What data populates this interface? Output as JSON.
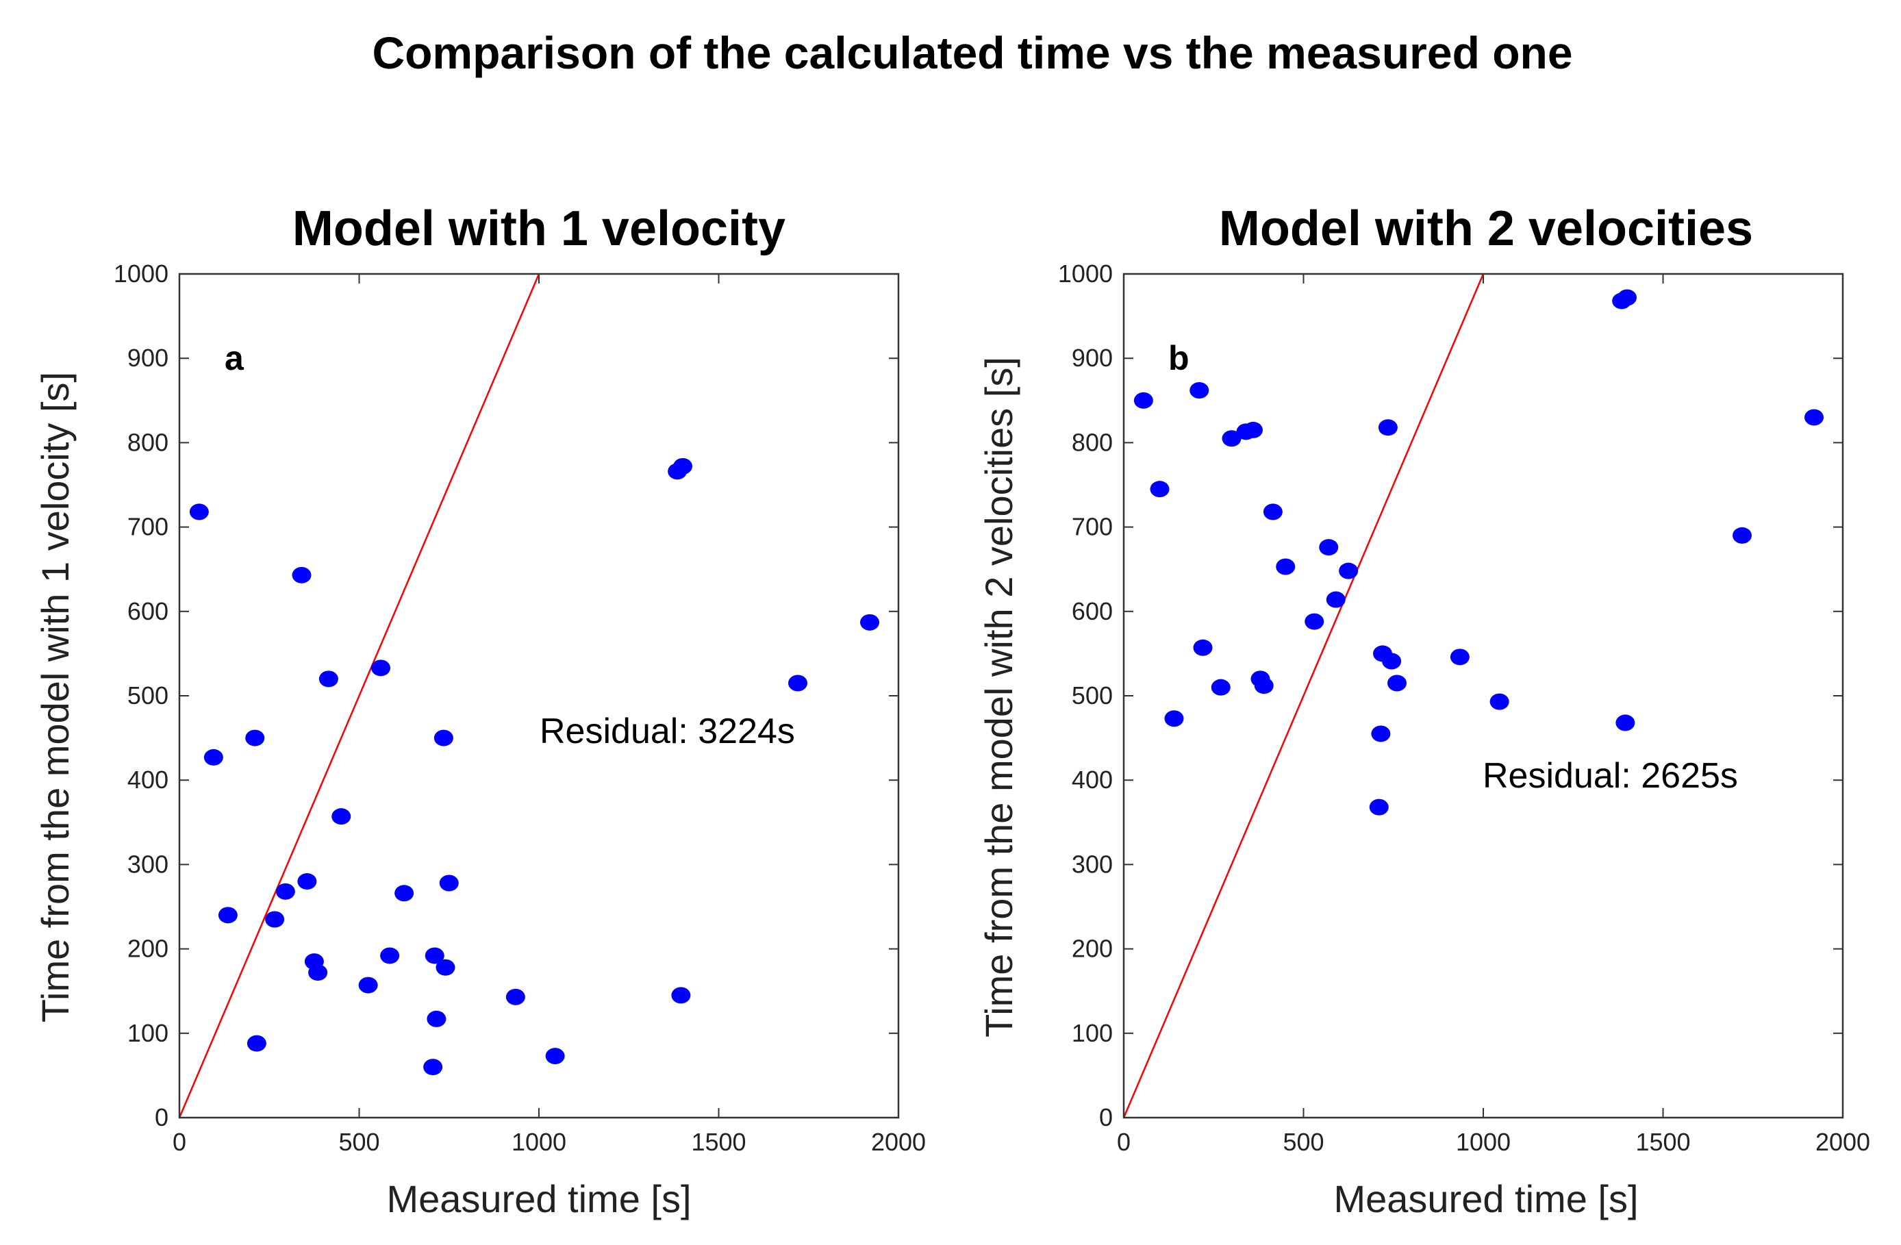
{
  "figure": {
    "title": "Comparison of the calculated time vs the measured one"
  },
  "chart_data": [
    {
      "type": "scatter",
      "title": "Model with 1 velocity",
      "panel_label": "a",
      "xlabel": "Measured time [s]",
      "ylabel": "Time from the model with 1 velocity [s]",
      "xlim": [
        0,
        2000
      ],
      "ylim": [
        0,
        1000
      ],
      "xticks": [
        0,
        500,
        1000,
        1500,
        2000
      ],
      "yticks": [
        0,
        100,
        200,
        300,
        400,
        500,
        600,
        700,
        800,
        900,
        1000
      ],
      "grid": false,
      "annotation": "Residual: 3224s",
      "reference_line": {
        "from": [
          0,
          0
        ],
        "to": [
          1000,
          1000
        ],
        "color": "#ff0000"
      },
      "marker_color": "#0000ff",
      "points": [
        [
          55,
          718
        ],
        [
          95,
          427
        ],
        [
          135,
          240
        ],
        [
          210,
          450
        ],
        [
          215,
          88
        ],
        [
          265,
          235
        ],
        [
          295,
          268
        ],
        [
          340,
          643
        ],
        [
          355,
          280
        ],
        [
          375,
          185
        ],
        [
          385,
          172
        ],
        [
          415,
          520
        ],
        [
          450,
          357
        ],
        [
          525,
          157
        ],
        [
          560,
          533
        ],
        [
          585,
          192
        ],
        [
          625,
          266
        ],
        [
          705,
          60
        ],
        [
          710,
          192
        ],
        [
          715,
          117
        ],
        [
          735,
          450
        ],
        [
          740,
          178
        ],
        [
          750,
          278
        ],
        [
          935,
          143
        ],
        [
          1045,
          73
        ],
        [
          1385,
          766
        ],
        [
          1400,
          772
        ],
        [
          1395,
          145
        ],
        [
          1720,
          515
        ],
        [
          1920,
          587
        ]
      ]
    },
    {
      "type": "scatter",
      "title": "Model with 2 velocities",
      "panel_label": "b",
      "xlabel": "Measured time [s]",
      "ylabel": "Time from the model with 2 velocities [s]",
      "xlim": [
        0,
        2000
      ],
      "ylim": [
        0,
        1000
      ],
      "xticks": [
        0,
        500,
        1000,
        1500,
        2000
      ],
      "yticks": [
        0,
        100,
        200,
        300,
        400,
        500,
        600,
        700,
        800,
        900,
        1000
      ],
      "grid": false,
      "annotation": "Residual: 2625s",
      "reference_line": {
        "from": [
          0,
          0
        ],
        "to": [
          1000,
          1000
        ],
        "color": "#ff0000"
      },
      "marker_color": "#0000ff",
      "points": [
        [
          55,
          850
        ],
        [
          100,
          745
        ],
        [
          140,
          473
        ],
        [
          210,
          862
        ],
        [
          220,
          557
        ],
        [
          270,
          510
        ],
        [
          300,
          805
        ],
        [
          340,
          813
        ],
        [
          360,
          815
        ],
        [
          380,
          520
        ],
        [
          390,
          512
        ],
        [
          415,
          718
        ],
        [
          450,
          653
        ],
        [
          530,
          588
        ],
        [
          570,
          676
        ],
        [
          590,
          614
        ],
        [
          625,
          648
        ],
        [
          710,
          368
        ],
        [
          715,
          455
        ],
        [
          720,
          550
        ],
        [
          735,
          818
        ],
        [
          745,
          541
        ],
        [
          760,
          515
        ],
        [
          935,
          546
        ],
        [
          1045,
          493
        ],
        [
          1385,
          968
        ],
        [
          1400,
          972
        ],
        [
          1395,
          468
        ],
        [
          1720,
          690
        ],
        [
          1920,
          830
        ]
      ]
    }
  ]
}
